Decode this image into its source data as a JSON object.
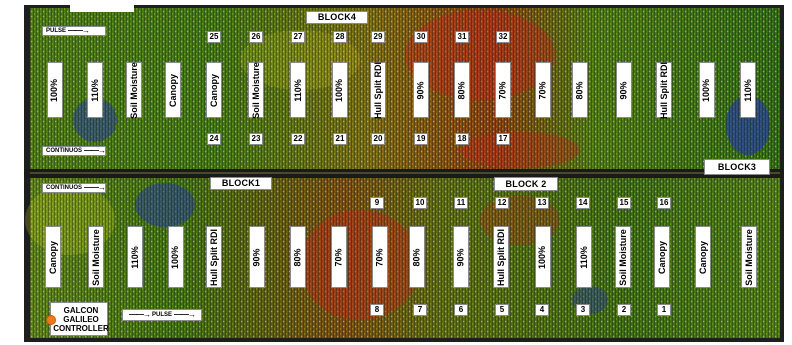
{
  "blocks": {
    "block4": "BLOCK4",
    "block1": "BLOCK1",
    "block2": "BLOCK 2",
    "block3": "BLOCK3"
  },
  "flow_labels": {
    "pulse_top": "PULSE",
    "continuous_top": "CONTINUOS",
    "continuous_bottom": "CONTINUOS",
    "pulse_bottom": "PULSE"
  },
  "controller": {
    "line1": "GALCON",
    "line2": "GALILEO",
    "line3": "CONTROLLER"
  },
  "upper_treatments": [
    "100%",
    "110%",
    "Soil Moisture",
    "Canopy",
    "Canopy",
    "Soil Moisture",
    "110%",
    "100%",
    "Hull Split RDI",
    "90%",
    "80%",
    "70%",
    "70%",
    "80%",
    "90%",
    "Hull Split RDI",
    "100%",
    "110%"
  ],
  "lower_treatments": [
    "Canopy",
    "Soil Moisture",
    "110%",
    "100%",
    "Hull Split RDI",
    "90%",
    "80%",
    "70%",
    "70%",
    "80%",
    "90%",
    "Hull Split RDI",
    "100%",
    "110%",
    "Soil Moisture",
    "Canopy",
    "Canopy",
    "Soil Moisture"
  ],
  "upper_plot_numbers_top": [
    "25",
    "26",
    "27",
    "28",
    "29",
    "30",
    "31",
    "32"
  ],
  "upper_plot_numbers_bottom": [
    "24",
    "23",
    "22",
    "21",
    "20",
    "19",
    "18",
    "17"
  ],
  "lower_plot_numbers_top": [
    "9",
    "10",
    "11",
    "12",
    "13",
    "14",
    "15",
    "16"
  ],
  "lower_plot_numbers_bottom": [
    "8",
    "7",
    "6",
    "5",
    "4",
    "3",
    "2",
    "1"
  ],
  "colors": {
    "canopy_green": "#2e6b1a",
    "stress_yellow": "#e8e020",
    "wet_blue": "#2a3ea6",
    "dry_red": "#c8281c",
    "frame": "#1e1e1e"
  }
}
